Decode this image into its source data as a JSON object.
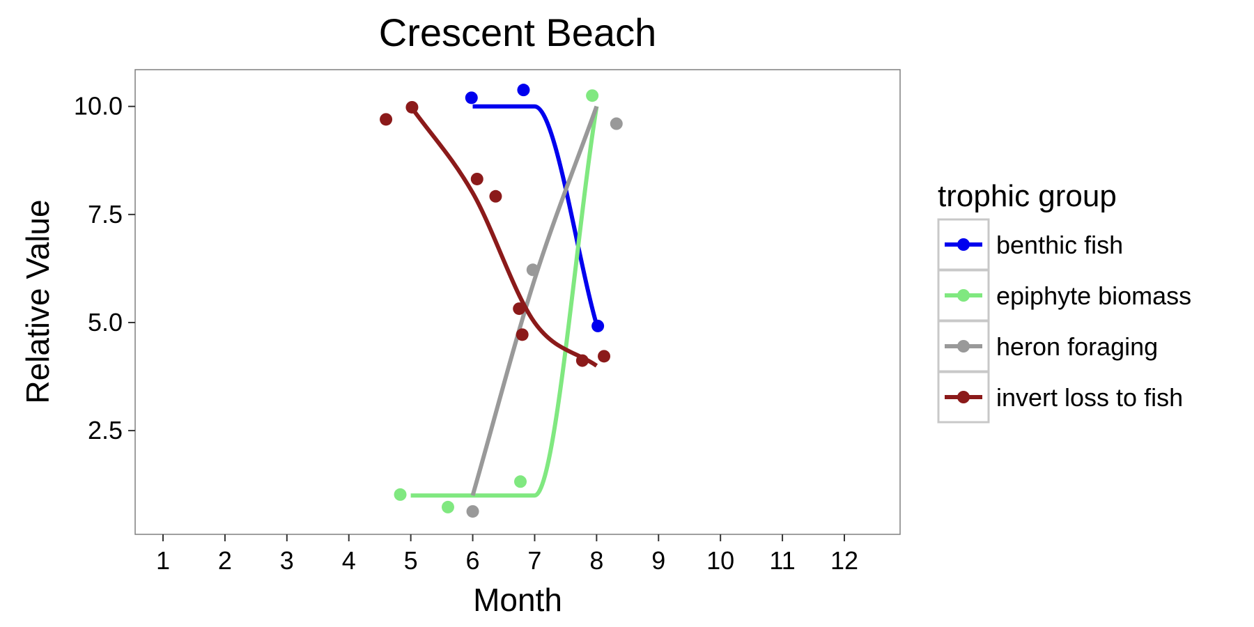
{
  "chart_data": {
    "type": "line",
    "title": "Crescent Beach",
    "xlabel": "Month",
    "ylabel": "Relative Value",
    "xlim": [
      0.55,
      12.9
    ],
    "ylim": [
      0.1,
      10.85
    ],
    "x_ticks": [
      1,
      2,
      3,
      4,
      5,
      6,
      7,
      8,
      9,
      10,
      11,
      12
    ],
    "x_tick_labels": [
      "1",
      "2",
      "3",
      "4",
      "5",
      "6",
      "7",
      "8",
      "9",
      "10",
      "11",
      "12"
    ],
    "y_ticks": [
      2.5,
      5.0,
      7.5,
      10.0
    ],
    "y_tick_labels": [
      "2.5",
      "5.0",
      "7.5",
      "10.0"
    ],
    "grid": false,
    "legend": {
      "title": "trophic group",
      "position": "right"
    },
    "series": [
      {
        "name": "benthic fish",
        "color": "#0000ee",
        "points": [
          [
            5.98,
            10.2
          ],
          [
            6.82,
            10.38
          ],
          [
            8.02,
            4.92
          ]
        ],
        "curve": [
          [
            6.0,
            10.0
          ],
          [
            7.0,
            10.0
          ],
          [
            8.0,
            4.95
          ]
        ]
      },
      {
        "name": "epiphyte biomass",
        "color": "#80e880",
        "points": [
          [
            4.83,
            1.02
          ],
          [
            5.6,
            0.73
          ],
          [
            6.77,
            1.32
          ],
          [
            7.93,
            10.25
          ]
        ],
        "curve": [
          [
            5.0,
            1.0
          ],
          [
            6.0,
            1.0
          ],
          [
            7.0,
            1.0
          ],
          [
            8.0,
            10.0
          ]
        ]
      },
      {
        "name": "heron foraging",
        "color": "#999999",
        "points": [
          [
            6.0,
            0.63
          ],
          [
            6.97,
            6.22
          ],
          [
            8.32,
            9.6
          ]
        ],
        "curve": [
          [
            6.0,
            1.0
          ],
          [
            7.0,
            6.0
          ],
          [
            8.0,
            10.0
          ]
        ]
      },
      {
        "name": "invert loss to fish",
        "color": "#8b1a1a",
        "points": [
          [
            4.6,
            9.7
          ],
          [
            5.02,
            9.98
          ],
          [
            6.07,
            8.32
          ],
          [
            6.37,
            7.92
          ],
          [
            6.75,
            5.32
          ],
          [
            6.8,
            4.72
          ],
          [
            7.77,
            4.12
          ],
          [
            8.12,
            4.22
          ]
        ],
        "curve": [
          [
            5.0,
            10.0
          ],
          [
            6.0,
            8.0
          ],
          [
            7.0,
            5.0
          ],
          [
            8.0,
            4.0
          ]
        ]
      }
    ]
  }
}
